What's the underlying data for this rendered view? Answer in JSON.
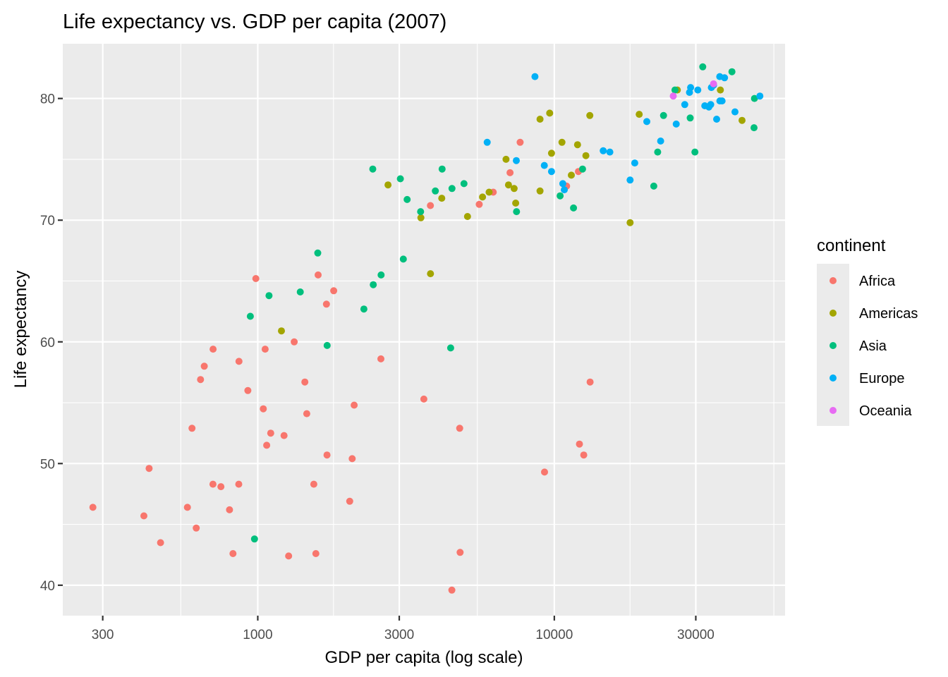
{
  "chart_data": {
    "type": "scatter",
    "title": "Life expectancy vs. GDP per capita (2007)",
    "xlabel": "GDP per capita (log scale)",
    "ylabel": "Life expectancy",
    "xscale": "log10",
    "xlim": [
      220,
      60000
    ],
    "ylim": [
      37.5,
      84.5
    ],
    "xticks": [
      300,
      1000,
      3000,
      10000,
      30000
    ],
    "xtick_labels": [
      "300",
      "1000",
      "3000",
      "10000",
      "30000"
    ],
    "xminor": [
      550,
      1800,
      5500,
      18000,
      55000
    ],
    "yticks": [
      40,
      50,
      60,
      70,
      80
    ],
    "ytick_labels": [
      "40",
      "50",
      "60",
      "70",
      "80"
    ],
    "yminor": [
      45,
      55,
      65,
      75
    ],
    "grid": true,
    "legend": {
      "title": "continent",
      "position": "right",
      "entries": [
        {
          "name": "Africa",
          "color": "#F8766D"
        },
        {
          "name": "Americas",
          "color": "#A3A500"
        },
        {
          "name": "Asia",
          "color": "#00BF7D"
        },
        {
          "name": "Europe",
          "color": "#00B0F6"
        },
        {
          "name": "Oceania",
          "color": "#E76BF3"
        }
      ]
    },
    "series": [
      {
        "name": "Africa",
        "color": "#F8766D",
        "points": [
          [
            278,
            46.4
          ],
          [
            413,
            45.7
          ],
          [
            430,
            49.6
          ],
          [
            470,
            43.5
          ],
          [
            579,
            46.4
          ],
          [
            600,
            52.9
          ],
          [
            620,
            44.7
          ],
          [
            641,
            56.9
          ],
          [
            660,
            58.0
          ],
          [
            706,
            48.3
          ],
          [
            707,
            59.4
          ],
          [
            751,
            48.1
          ],
          [
            803,
            46.2
          ],
          [
            825,
            42.6
          ],
          [
            863,
            48.3
          ],
          [
            864,
            58.4
          ],
          [
            926,
            56.0
          ],
          [
            985,
            65.2
          ],
          [
            1044,
            54.5
          ],
          [
            1059,
            59.4
          ],
          [
            1072,
            51.5
          ],
          [
            1106,
            52.5
          ],
          [
            1226,
            52.3
          ],
          [
            1271,
            42.4
          ],
          [
            1327,
            60.0
          ],
          [
            1441,
            56.7
          ],
          [
            1463,
            54.1
          ],
          [
            1545,
            48.3
          ],
          [
            1570,
            42.6
          ],
          [
            1598,
            65.5
          ],
          [
            1704,
            63.1
          ],
          [
            1712,
            50.7
          ],
          [
            1803,
            64.2
          ],
          [
            2042,
            46.9
          ],
          [
            2082,
            50.4
          ],
          [
            2114,
            54.8
          ],
          [
            2602,
            58.6
          ],
          [
            3632,
            55.3
          ],
          [
            3820,
            71.2
          ],
          [
            4513,
            39.6
          ],
          [
            4797,
            52.9
          ],
          [
            4811,
            42.7
          ],
          [
            5581,
            71.3
          ],
          [
            6223,
            72.3
          ],
          [
            7093,
            73.9
          ],
          [
            7670,
            76.4
          ],
          [
            9270,
            49.3
          ],
          [
            11004,
            72.8
          ],
          [
            12154,
            51.6
          ],
          [
            12570,
            50.7
          ],
          [
            12057,
            74.0
          ],
          [
            13206,
            56.7
          ]
        ]
      },
      {
        "name": "Americas",
        "color": "#A3A500",
        "points": [
          [
            1202,
            60.9
          ],
          [
            3822,
            65.6
          ],
          [
            2749,
            72.9
          ],
          [
            3548,
            70.2
          ],
          [
            4173,
            71.8
          ],
          [
            5097,
            70.3
          ],
          [
            5728,
            71.9
          ],
          [
            6025,
            72.3
          ],
          [
            7007,
            72.9
          ],
          [
            6873,
            75.0
          ],
          [
            7409,
            71.4
          ],
          [
            7320,
            72.6
          ],
          [
            8948,
            72.4
          ],
          [
            8948,
            78.3
          ],
          [
            9645,
            78.8
          ],
          [
            9786,
            75.5
          ],
          [
            10611,
            76.4
          ],
          [
            11416,
            73.7
          ],
          [
            11978,
            76.2
          ],
          [
            12779,
            75.3
          ],
          [
            13172,
            78.6
          ],
          [
            18009,
            69.8
          ],
          [
            19329,
            78.7
          ],
          [
            36319,
            80.7
          ],
          [
            42952,
            78.2
          ],
          [
            26000,
            80.7
          ]
        ]
      },
      {
        "name": "Asia",
        "color": "#00BF7D",
        "points": [
          [
            975,
            43.8
          ],
          [
            944,
            62.1
          ],
          [
            1091,
            63.8
          ],
          [
            1391,
            64.1
          ],
          [
            1593,
            67.3
          ],
          [
            1714,
            59.7
          ],
          [
            2280,
            62.7
          ],
          [
            2452,
            64.7
          ],
          [
            2605,
            65.5
          ],
          [
            2442,
            74.2
          ],
          [
            3025,
            73.4
          ],
          [
            3096,
            66.8
          ],
          [
            3190,
            71.7
          ],
          [
            3541,
            70.7
          ],
          [
            3970,
            72.4
          ],
          [
            4185,
            74.2
          ],
          [
            4471,
            59.5
          ],
          [
            4519,
            72.6
          ],
          [
            4959,
            73.0
          ],
          [
            7458,
            70.7
          ],
          [
            10461,
            72.0
          ],
          [
            12452,
            74.2
          ],
          [
            11606,
            71.0
          ],
          [
            21655,
            72.8
          ],
          [
            22316,
            75.6
          ],
          [
            23348,
            78.6
          ],
          [
            25523,
            80.7
          ],
          [
            28718,
            78.4
          ],
          [
            29796,
            75.6
          ],
          [
            31656,
            82.6
          ],
          [
            39725,
            82.2
          ],
          [
            47307,
            80.0
          ],
          [
            47143,
            77.6
          ]
        ]
      },
      {
        "name": "Europe",
        "color": "#00B0F6",
        "points": [
          [
            5937,
            76.4
          ],
          [
            7446,
            74.9
          ],
          [
            8605,
            81.8
          ],
          [
            9253,
            74.5
          ],
          [
            9787,
            74.0
          ],
          [
            10681,
            73.0
          ],
          [
            10808,
            72.5
          ],
          [
            14619,
            75.7
          ],
          [
            15390,
            75.6
          ],
          [
            18009,
            73.3
          ],
          [
            18678,
            74.7
          ],
          [
            20510,
            78.1
          ],
          [
            22833,
            76.5
          ],
          [
            25768,
            77.9
          ],
          [
            27538,
            79.5
          ],
          [
            28570,
            80.5
          ],
          [
            28821,
            80.9
          ],
          [
            30470,
            80.7
          ],
          [
            32170,
            79.4
          ],
          [
            33203,
            79.3
          ],
          [
            33693,
            79.5
          ],
          [
            33860,
            80.9
          ],
          [
            34435,
            81.1
          ],
          [
            35278,
            78.3
          ],
          [
            36126,
            81.8
          ],
          [
            36181,
            79.8
          ],
          [
            36798,
            79.8
          ],
          [
            37506,
            81.7
          ],
          [
            40676,
            78.9
          ],
          [
            49357,
            80.2
          ]
        ]
      },
      {
        "name": "Oceania",
        "color": "#E76BF3",
        "points": [
          [
            25185,
            80.2
          ],
          [
            34435,
            81.2
          ]
        ]
      }
    ]
  }
}
